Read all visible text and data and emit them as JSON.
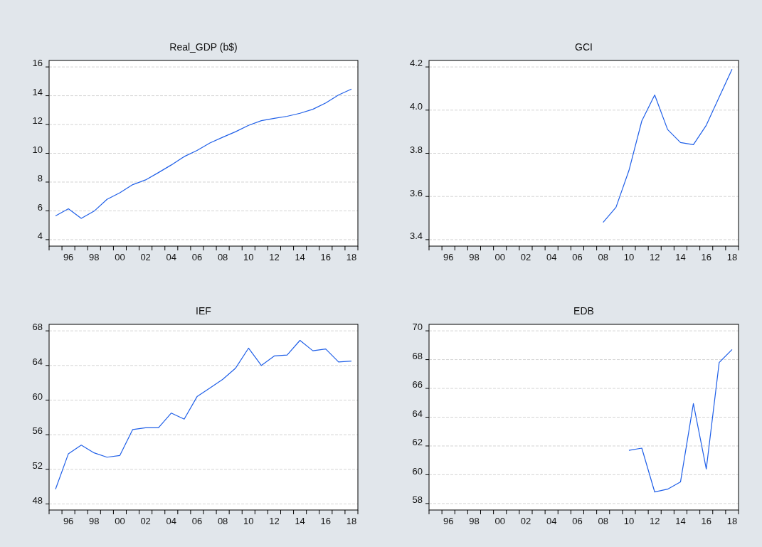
{
  "chart_data": [
    {
      "type": "line",
      "title": "Real_GDP (b$)",
      "x": [
        1995,
        1996,
        1997,
        1998,
        1999,
        2000,
        2001,
        2002,
        2003,
        2004,
        2005,
        2006,
        2007,
        2008,
        2009,
        2010,
        2011,
        2012,
        2013,
        2014,
        2015,
        2016,
        2017,
        2018
      ],
      "series": [
        {
          "color": "#1f5fe8",
          "values": [
            5.65,
            6.14,
            5.48,
            5.98,
            6.8,
            7.26,
            7.82,
            8.15,
            8.66,
            9.19,
            9.77,
            10.2,
            10.72,
            11.12,
            11.5,
            11.94,
            12.27,
            12.43,
            12.57,
            12.78,
            13.06,
            13.5,
            14.05,
            14.46
          ]
        }
      ],
      "xlim": [
        1994.5,
        2018.5
      ],
      "ylim": [
        3.55,
        16.45
      ],
      "yticks": [
        4,
        6,
        8,
        10,
        12,
        14,
        16
      ],
      "xticks": [
        {
          "value": 1996,
          "label": "96"
        },
        {
          "value": 1998,
          "label": "98"
        },
        {
          "value": 2000,
          "label": "00"
        },
        {
          "value": 2002,
          "label": "02"
        },
        {
          "value": 2004,
          "label": "04"
        },
        {
          "value": 2006,
          "label": "06"
        },
        {
          "value": 2008,
          "label": "08"
        },
        {
          "value": 2010,
          "label": "10"
        },
        {
          "value": 2012,
          "label": "12"
        },
        {
          "value": 2014,
          "label": "14"
        },
        {
          "value": 2016,
          "label": "16"
        },
        {
          "value": 2018,
          "label": "18"
        },
        {
          "value": 1994.5,
          "label": null
        },
        {
          "value": 1995.5,
          "label": null
        },
        {
          "value": 1996.5,
          "label": null
        },
        {
          "value": 1997.5,
          "label": null
        },
        {
          "value": 1998.5,
          "label": null
        },
        {
          "value": 1999.5,
          "label": null
        },
        {
          "value": 2000.5,
          "label": null
        },
        {
          "value": 2001.5,
          "label": null
        },
        {
          "value": 2002.5,
          "label": null
        },
        {
          "value": 2003.5,
          "label": null
        },
        {
          "value": 2004.5,
          "label": null
        },
        {
          "value": 2005.5,
          "label": null
        },
        {
          "value": 2006.5,
          "label": null
        },
        {
          "value": 2007.5,
          "label": null
        },
        {
          "value": 2008.5,
          "label": null
        },
        {
          "value": 2009.5,
          "label": null
        },
        {
          "value": 2010.5,
          "label": null
        },
        {
          "value": 2011.5,
          "label": null
        },
        {
          "value": 2012.5,
          "label": null
        },
        {
          "value": 2013.5,
          "label": null
        },
        {
          "value": 2014.5,
          "label": null
        },
        {
          "value": 2015.5,
          "label": null
        },
        {
          "value": 2016.5,
          "label": null
        },
        {
          "value": 2017.5,
          "label": null
        },
        {
          "value": 2018.5,
          "label": null
        }
      ],
      "grid": "y"
    },
    {
      "type": "line",
      "title": "GCI",
      "series": [
        {
          "color": "#1f5fe8",
          "x": [
            2008,
            2009,
            2010,
            2011,
            2012,
            2013,
            2014,
            2015,
            2016,
            2017,
            2018
          ],
          "values": [
            3.48,
            3.55,
            3.72,
            3.95,
            4.07,
            3.91,
            3.85,
            3.84,
            3.93,
            4.06,
            4.19
          ]
        }
      ],
      "xlim": [
        1994.5,
        2018.5
      ],
      "ylim": [
        3.37,
        4.23
      ],
      "yticks": [
        3.4,
        3.6,
        3.8,
        {
          "value": 4.0,
          "label": "4.0"
        },
        4.2
      ],
      "xticks": [
        {
          "value": 1996,
          "label": "96"
        },
        {
          "value": 1998,
          "label": "98"
        },
        {
          "value": 2000,
          "label": "00"
        },
        {
          "value": 2002,
          "label": "02"
        },
        {
          "value": 2004,
          "label": "04"
        },
        {
          "value": 2006,
          "label": "06"
        },
        {
          "value": 2008,
          "label": "08"
        },
        {
          "value": 2010,
          "label": "10"
        },
        {
          "value": 2012,
          "label": "12"
        },
        {
          "value": 2014,
          "label": "14"
        },
        {
          "value": 2016,
          "label": "16"
        },
        {
          "value": 2018,
          "label": "18"
        },
        {
          "value": 1994.5,
          "label": null
        },
        {
          "value": 1995.5,
          "label": null
        },
        {
          "value": 1996.5,
          "label": null
        },
        {
          "value": 1997.5,
          "label": null
        },
        {
          "value": 1998.5,
          "label": null
        },
        {
          "value": 1999.5,
          "label": null
        },
        {
          "value": 2000.5,
          "label": null
        },
        {
          "value": 2001.5,
          "label": null
        },
        {
          "value": 2002.5,
          "label": null
        },
        {
          "value": 2003.5,
          "label": null
        },
        {
          "value": 2004.5,
          "label": null
        },
        {
          "value": 2005.5,
          "label": null
        },
        {
          "value": 2006.5,
          "label": null
        },
        {
          "value": 2007.5,
          "label": null
        },
        {
          "value": 2008.5,
          "label": null
        },
        {
          "value": 2009.5,
          "label": null
        },
        {
          "value": 2010.5,
          "label": null
        },
        {
          "value": 2011.5,
          "label": null
        },
        {
          "value": 2012.5,
          "label": null
        },
        {
          "value": 2013.5,
          "label": null
        },
        {
          "value": 2014.5,
          "label": null
        },
        {
          "value": 2015.5,
          "label": null
        },
        {
          "value": 2016.5,
          "label": null
        },
        {
          "value": 2017.5,
          "label": null
        },
        {
          "value": 2018.5,
          "label": null
        }
      ],
      "grid": "y"
    },
    {
      "type": "line",
      "title": "IEF",
      "x": [
        1995,
        1996,
        1997,
        1998,
        1999,
        2000,
        2001,
        2002,
        2003,
        2004,
        2005,
        2006,
        2007,
        2008,
        2009,
        2010,
        2011,
        2012,
        2013,
        2014,
        2015,
        2016,
        2017,
        2018
      ],
      "series": [
        {
          "color": "#1f5fe8",
          "values": [
            49.7,
            53.8,
            54.8,
            53.9,
            53.4,
            53.6,
            56.6,
            56.8,
            56.8,
            58.5,
            57.8,
            60.4,
            61.4,
            62.4,
            63.7,
            66.0,
            64.0,
            65.1,
            65.2,
            66.9,
            65.7,
            65.9,
            64.4,
            64.5
          ]
        }
      ],
      "xlim": [
        1994.5,
        2018.5
      ],
      "ylim": [
        47.3,
        68.75
      ],
      "yticks": [
        48,
        52,
        56,
        60,
        64,
        68
      ],
      "xticks": [
        {
          "value": 1996,
          "label": "96"
        },
        {
          "value": 1998,
          "label": "98"
        },
        {
          "value": 2000,
          "label": "00"
        },
        {
          "value": 2002,
          "label": "02"
        },
        {
          "value": 2004,
          "label": "04"
        },
        {
          "value": 2006,
          "label": "06"
        },
        {
          "value": 2008,
          "label": "08"
        },
        {
          "value": 2010,
          "label": "10"
        },
        {
          "value": 2012,
          "label": "12"
        },
        {
          "value": 2014,
          "label": "14"
        },
        {
          "value": 2016,
          "label": "16"
        },
        {
          "value": 2018,
          "label": "18"
        },
        {
          "value": 1994.5,
          "label": null
        },
        {
          "value": 1995.5,
          "label": null
        },
        {
          "value": 1996.5,
          "label": null
        },
        {
          "value": 1997.5,
          "label": null
        },
        {
          "value": 1998.5,
          "label": null
        },
        {
          "value": 1999.5,
          "label": null
        },
        {
          "value": 2000.5,
          "label": null
        },
        {
          "value": 2001.5,
          "label": null
        },
        {
          "value": 2002.5,
          "label": null
        },
        {
          "value": 2003.5,
          "label": null
        },
        {
          "value": 2004.5,
          "label": null
        },
        {
          "value": 2005.5,
          "label": null
        },
        {
          "value": 2006.5,
          "label": null
        },
        {
          "value": 2007.5,
          "label": null
        },
        {
          "value": 2008.5,
          "label": null
        },
        {
          "value": 2009.5,
          "label": null
        },
        {
          "value": 2010.5,
          "label": null
        },
        {
          "value": 2011.5,
          "label": null
        },
        {
          "value": 2012.5,
          "label": null
        },
        {
          "value": 2013.5,
          "label": null
        },
        {
          "value": 2014.5,
          "label": null
        },
        {
          "value": 2015.5,
          "label": null
        },
        {
          "value": 2016.5,
          "label": null
        },
        {
          "value": 2017.5,
          "label": null
        },
        {
          "value": 2018.5,
          "label": null
        }
      ],
      "grid": "y"
    },
    {
      "type": "line",
      "title": "EDB",
      "series": [
        {
          "color": "#1f5fe8",
          "x": [
            2010,
            2011,
            2012,
            2013,
            2014,
            2015,
            2016,
            2017,
            2018
          ],
          "values": [
            61.7,
            61.85,
            58.8,
            59.0,
            59.5,
            64.95,
            60.4,
            67.8,
            68.7
          ]
        }
      ],
      "xlim": [
        1994.5,
        2018.5
      ],
      "ylim": [
        57.55,
        70.45
      ],
      "yticks": [
        58,
        60,
        62,
        64,
        66,
        68,
        70
      ],
      "xticks": [
        {
          "value": 1996,
          "label": "96"
        },
        {
          "value": 1998,
          "label": "98"
        },
        {
          "value": 2000,
          "label": "00"
        },
        {
          "value": 2002,
          "label": "02"
        },
        {
          "value": 2004,
          "label": "04"
        },
        {
          "value": 2006,
          "label": "06"
        },
        {
          "value": 2008,
          "label": "08"
        },
        {
          "value": 2010,
          "label": "10"
        },
        {
          "value": 2012,
          "label": "12"
        },
        {
          "value": 2014,
          "label": "14"
        },
        {
          "value": 2016,
          "label": "16"
        },
        {
          "value": 2018,
          "label": "18"
        },
        {
          "value": 1994.5,
          "label": null
        },
        {
          "value": 1995.5,
          "label": null
        },
        {
          "value": 1996.5,
          "label": null
        },
        {
          "value": 1997.5,
          "label": null
        },
        {
          "value": 1998.5,
          "label": null
        },
        {
          "value": 1999.5,
          "label": null
        },
        {
          "value": 2000.5,
          "label": null
        },
        {
          "value": 2001.5,
          "label": null
        },
        {
          "value": 2002.5,
          "label": null
        },
        {
          "value": 2003.5,
          "label": null
        },
        {
          "value": 2004.5,
          "label": null
        },
        {
          "value": 2005.5,
          "label": null
        },
        {
          "value": 2006.5,
          "label": null
        },
        {
          "value": 2007.5,
          "label": null
        },
        {
          "value": 2008.5,
          "label": null
        },
        {
          "value": 2009.5,
          "label": null
        },
        {
          "value": 2010.5,
          "label": null
        },
        {
          "value": 2011.5,
          "label": null
        },
        {
          "value": 2012.5,
          "label": null
        },
        {
          "value": 2013.5,
          "label": null
        },
        {
          "value": 2014.5,
          "label": null
        },
        {
          "value": 2015.5,
          "label": null
        },
        {
          "value": 2016.5,
          "label": null
        },
        {
          "value": 2017.5,
          "label": null
        },
        {
          "value": 2018.5,
          "label": null
        }
      ],
      "grid": "y"
    }
  ]
}
